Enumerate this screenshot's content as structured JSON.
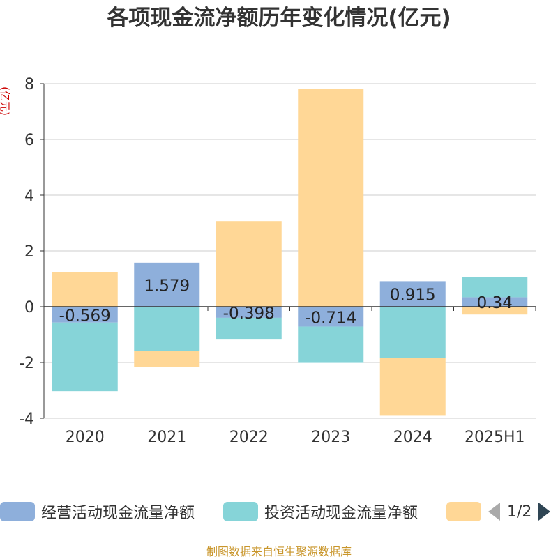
{
  "chart_data": {
    "type": "bar",
    "stacked": true,
    "title": "各项现金流净额历年变化情况(亿元)",
    "ylabel": "(亿元)",
    "xlabel": "",
    "categories": [
      "2020",
      "2021",
      "2022",
      "2023",
      "2024",
      "2025H1"
    ],
    "ylim": [
      -4,
      8
    ],
    "yticks": [
      -4,
      -2,
      0,
      2,
      4,
      6,
      8
    ],
    "grid": true,
    "series": [
      {
        "name": "经营活动现金流量净额",
        "color": "#8eafdb",
        "values": [
          -0.569,
          1.579,
          -0.398,
          -0.714,
          0.915,
          0.34
        ],
        "data_labels": [
          "-0.569",
          "1.579",
          "-0.398",
          "-0.714",
          "0.915",
          "0.34"
        ]
      },
      {
        "name": "投资活动现金流量净额",
        "color": "#86d4d8",
        "values": [
          -2.46,
          -1.6,
          -0.78,
          -1.3,
          -1.85,
          0.72
        ]
      },
      {
        "name": "",
        "color": "#ffd796",
        "values": [
          1.25,
          -0.55,
          3.07,
          7.8,
          -2.06,
          -0.28
        ]
      }
    ],
    "legend_position": "bottom",
    "legend_pager": "1/2"
  },
  "source_note": "制图数据来自恒生聚源数据库",
  "colors": {
    "axis_label": "#cc0000",
    "text": "#333333",
    "grid": "#cccccc",
    "source": "#c9962b"
  }
}
